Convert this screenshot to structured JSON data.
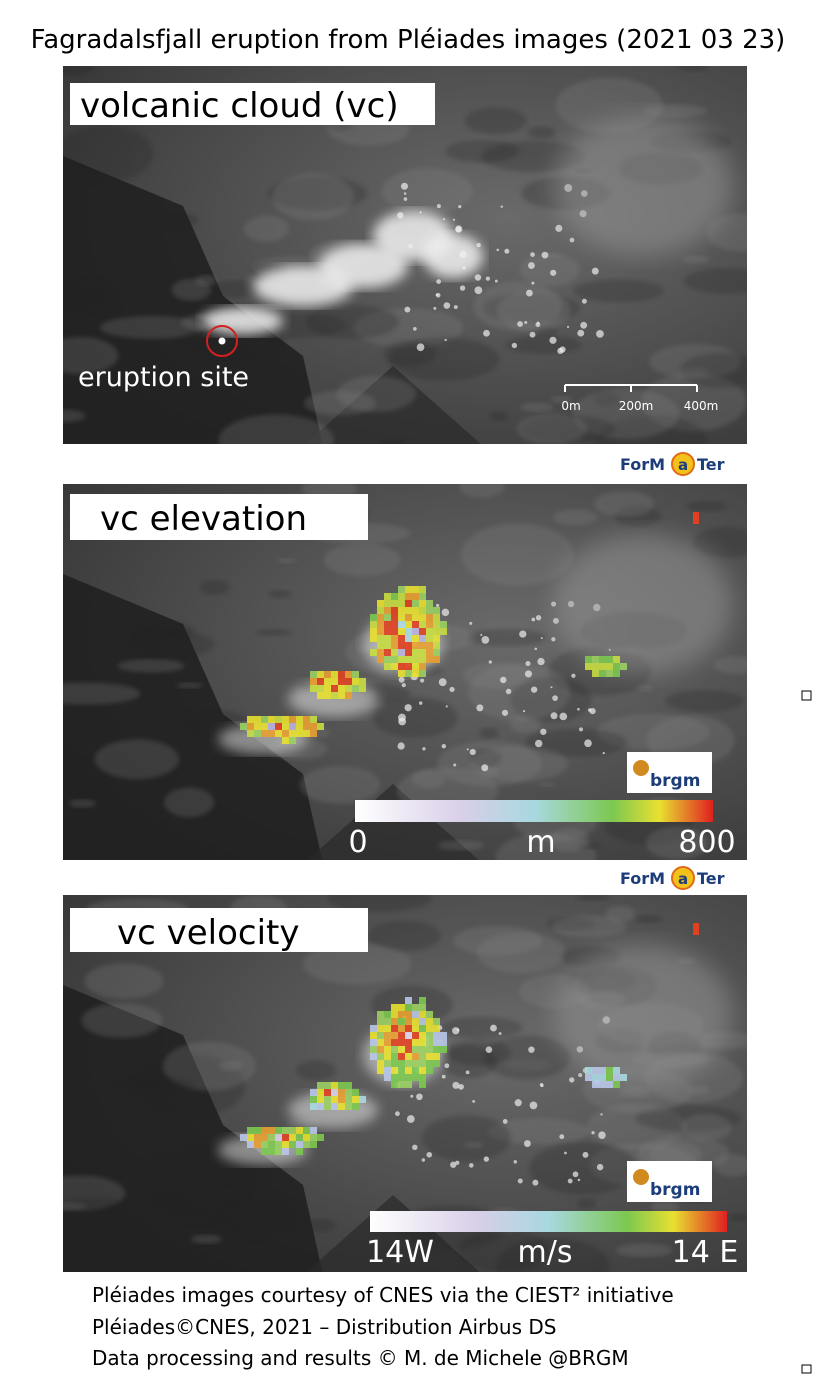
{
  "title": "Fagradalsfjall eruption from Pléiades images (2021 03 23)",
  "panels": [
    {
      "label": "volcanic cloud (vc)",
      "annotation": "eruption site",
      "scale_bar": [
        "0m",
        "200m",
        "400m"
      ]
    },
    {
      "label": "vc elevation",
      "colorbar": {
        "min_label": "0",
        "unit": "m",
        "max_label": "800"
      }
    },
    {
      "label": "vc velocity",
      "colorbar": {
        "min_label": "14W",
        "unit": "m/s",
        "max_label": "14 E"
      }
    }
  ],
  "logos": {
    "formater_left": "ForM",
    "formater_at": "a",
    "formater_right": "Ter",
    "brgm": "brgm"
  },
  "footer": [
    "Pléiades images courtesy of CNES via the CIEST² initiative",
    "Pléiades©CNES, 2021 – Distribution Airbus DS",
    "Data processing and results © M. de Michele @BRGM"
  ]
}
